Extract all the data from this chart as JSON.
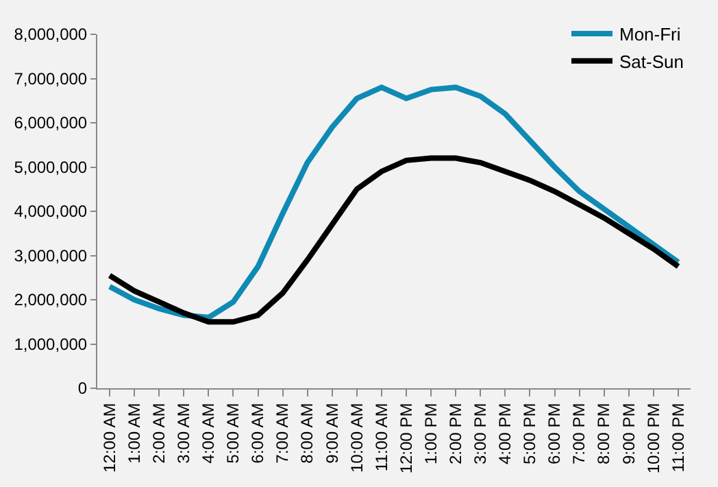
{
  "chart_data": {
    "type": "line",
    "categories": [
      "12:00 AM",
      "1:00 AM",
      "2:00 AM",
      "3:00 AM",
      "4:00 AM",
      "5:00 AM",
      "6:00 AM",
      "7:00 AM",
      "8:00 AM",
      "9:00 AM",
      "10:00 AM",
      "11:00 AM",
      "12:00 PM",
      "1:00 PM",
      "2:00 PM",
      "3:00 PM",
      "4:00 PM",
      "5:00 PM",
      "6:00 PM",
      "7:00 PM",
      "8:00 PM",
      "9:00 PM",
      "10:00 PM",
      "11:00 PM"
    ],
    "series": [
      {
        "name": "Mon-Fri",
        "color": "#0f8ab4",
        "values": [
          2300000,
          2000000,
          1800000,
          1650000,
          1600000,
          1950000,
          2750000,
          3950000,
          5100000,
          5900000,
          6550000,
          6800000,
          6550000,
          6750000,
          6800000,
          6600000,
          6200000,
          5600000,
          5000000,
          4450000,
          4050000,
          3650000,
          3250000,
          2850000
        ]
      },
      {
        "name": "Sat-Sun",
        "color": "#000000",
        "values": [
          2550000,
          2200000,
          1950000,
          1700000,
          1500000,
          1500000,
          1650000,
          2150000,
          2900000,
          3700000,
          4500000,
          4900000,
          5150000,
          5200000,
          5200000,
          5100000,
          4900000,
          4700000,
          4450000,
          4150000,
          3850000,
          3500000,
          3150000,
          2750000
        ]
      }
    ],
    "ylim": [
      0,
      8000000
    ],
    "yticks": [
      {
        "value": 0,
        "label": "0"
      },
      {
        "value": 1000000,
        "label": "1,000,000"
      },
      {
        "value": 2000000,
        "label": "2,000,000"
      },
      {
        "value": 3000000,
        "label": "3,000,000"
      },
      {
        "value": 4000000,
        "label": "4,000,000"
      },
      {
        "value": 5000000,
        "label": "5,000,000"
      },
      {
        "value": 6000000,
        "label": "6,000,000"
      },
      {
        "value": 7000000,
        "label": "7,000,000"
      },
      {
        "value": 8000000,
        "label": "8,000,000"
      }
    ],
    "grid": false,
    "legend": "top right",
    "marker": "none",
    "line_style": "solid"
  }
}
